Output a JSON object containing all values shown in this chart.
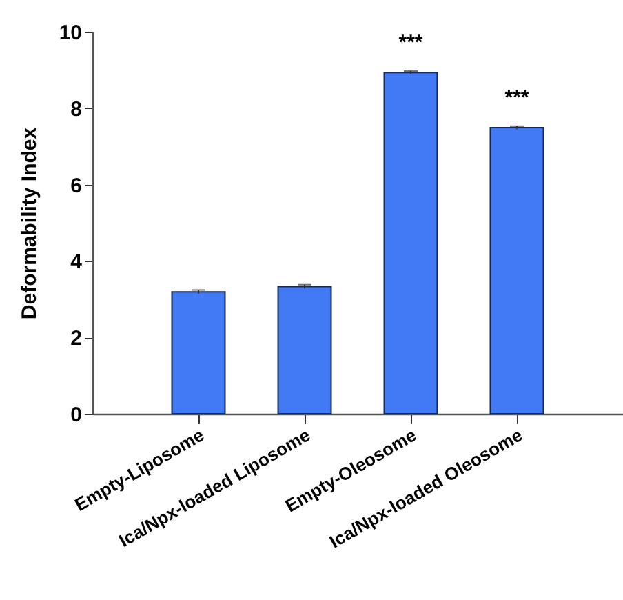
{
  "chart_data": {
    "type": "bar",
    "ylabel": "Deformability Index",
    "categories": [
      "Empty-Liposome",
      "Ica/Npx-loaded Liposome",
      "Empty-Oleosome",
      "Ica/Npx-loaded Oleosome"
    ],
    "values": [
      3.19,
      3.33,
      8.93,
      7.49
    ],
    "errors": [
      0.05,
      0.05,
      0.04,
      0.04
    ],
    "color": "#4279f5",
    "ylim": [
      0,
      10
    ],
    "yticks": [
      0,
      2,
      4,
      6,
      8,
      10
    ],
    "grid": false,
    "annotations": [
      {
        "text": "***",
        "x": "Empty-Oleosome",
        "y": 8.93
      },
      {
        "text": "***",
        "x": "Ica/Npx-loaded Oleosome",
        "y": 7.49
      }
    ]
  }
}
